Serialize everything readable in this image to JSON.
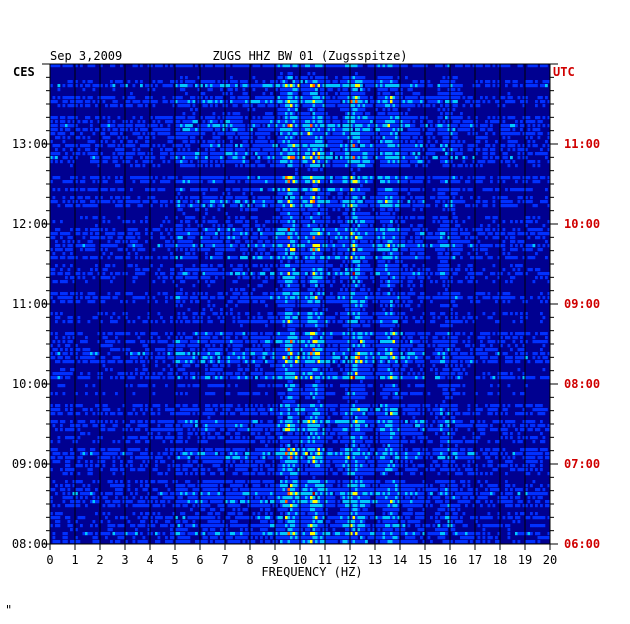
{
  "chart_data": {
    "type": "heatmap",
    "header_left": "Sep 3,2009",
    "title": "ZUGS HHZ BW 01 (Zugsspitze)",
    "left_axis_label": "CES",
    "right_axis_label": "UTC",
    "xlabel": "FREQUENCY (HZ)",
    "xlim": [
      0,
      20
    ],
    "x_ticks": [
      "0",
      "1",
      "2",
      "3",
      "4",
      "5",
      "6",
      "7",
      "8",
      "9",
      "10",
      "11",
      "12",
      "13",
      "14",
      "15",
      "16",
      "17",
      "18",
      "19",
      "20"
    ],
    "y_ticks_left": [
      "08:00",
      "09:00",
      "10:00",
      "11:00",
      "12:00",
      "13:00"
    ],
    "y_ticks_right": [
      "06:00",
      "07:00",
      "08:00",
      "09:00",
      "10:00",
      "11:00"
    ],
    "time_range_ces": [
      "08:00",
      "14:00"
    ],
    "grid": true,
    "colormap": [
      "#000090",
      "#0030ff",
      "#00c8ff",
      "#ffff00",
      "#ff6000",
      "#b00000"
    ],
    "right_axis_color": "#d00000",
    "notable_energy_bands_hz": [
      {
        "f": 9.6,
        "level": "high"
      },
      {
        "f": 10.6,
        "level": "high"
      },
      {
        "f": 12.2,
        "level": "high"
      },
      {
        "f": 13.6,
        "level": "medium"
      },
      {
        "f": 15.9,
        "level": "spike"
      }
    ],
    "footer_mark": "\""
  }
}
